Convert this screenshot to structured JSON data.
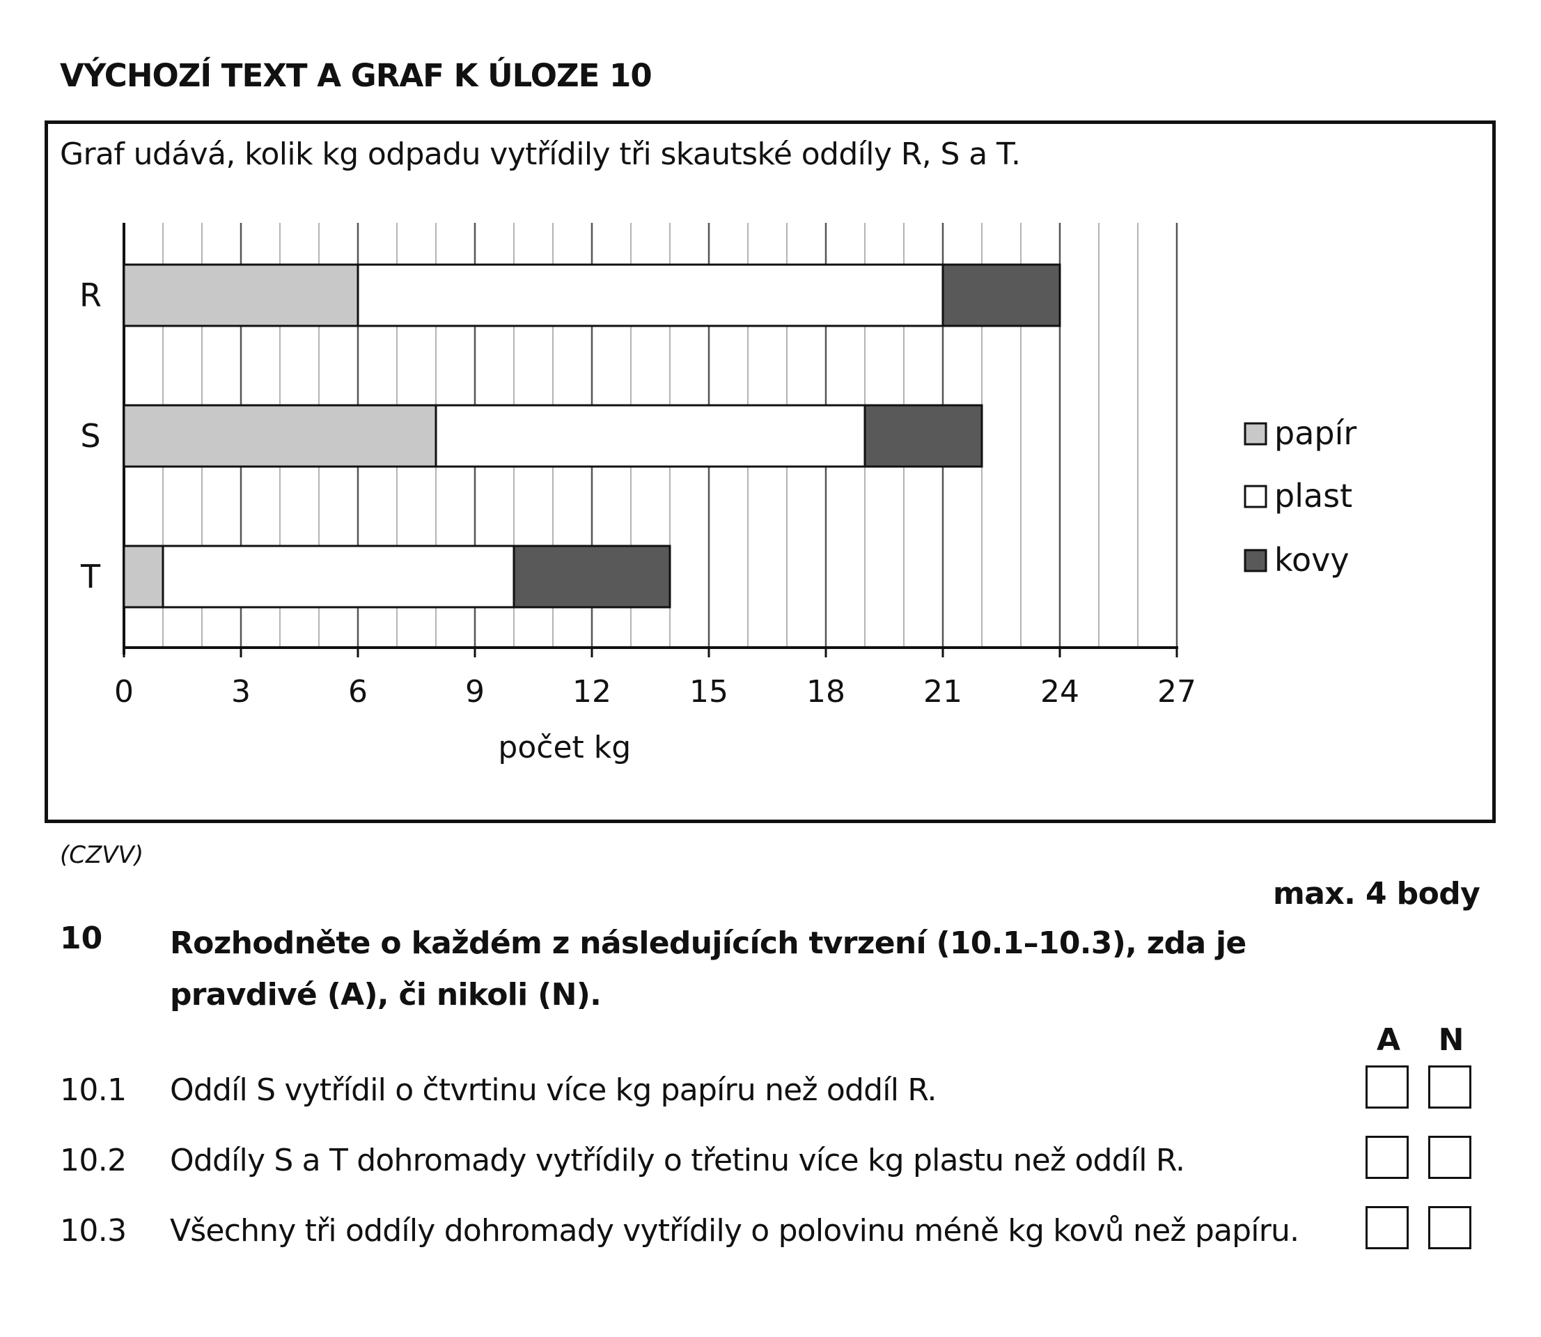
{
  "heading": "VÝCHOZÍ TEXT A GRAF K ÚLOZE 10",
  "intro": "Graf udává, kolik kg odpadu vytřídily tři skautské oddíly R, S a T.",
  "chart_data": {
    "type": "bar",
    "orientation": "horizontal",
    "stacked": true,
    "title": "",
    "xlabel": "počet kg",
    "ylabel": "",
    "xlim": [
      0,
      27
    ],
    "xticks": [
      0,
      3,
      6,
      9,
      12,
      15,
      18,
      21,
      24,
      27
    ],
    "minor_grid_step": 1,
    "grid": true,
    "legend_position": "right",
    "categories": [
      "R",
      "S",
      "T"
    ],
    "series": [
      {
        "name": "papír",
        "color": "#c8c8c8",
        "values": [
          6,
          8,
          1
        ]
      },
      {
        "name": "plast",
        "color": "#ffffff",
        "values": [
          15,
          11,
          9
        ]
      },
      {
        "name": "kovy",
        "color": "#595959",
        "values": [
          3,
          3,
          4
        ]
      }
    ]
  },
  "source": "(CZVV)",
  "task": {
    "points": "max. 4 body",
    "number": "10",
    "text": "Rozhodněte o každém z následujících tvrzení (10.1–10.3), zda je pravdivé (A), či nikoli (N).",
    "col_a": "A",
    "col_n": "N",
    "statements": [
      {
        "number": "10.1",
        "text": "Oddíl S vytřídil o čtvrtinu více kg papíru než oddíl R."
      },
      {
        "number": "10.2",
        "text": "Oddíly S a T dohromady vytřídily o třetinu více kg plastu než oddíl R."
      },
      {
        "number": "10.3",
        "text": "Všechny tři oddíly dohromady vytřídily o polovinu méně kg kovů než papíru."
      }
    ]
  }
}
